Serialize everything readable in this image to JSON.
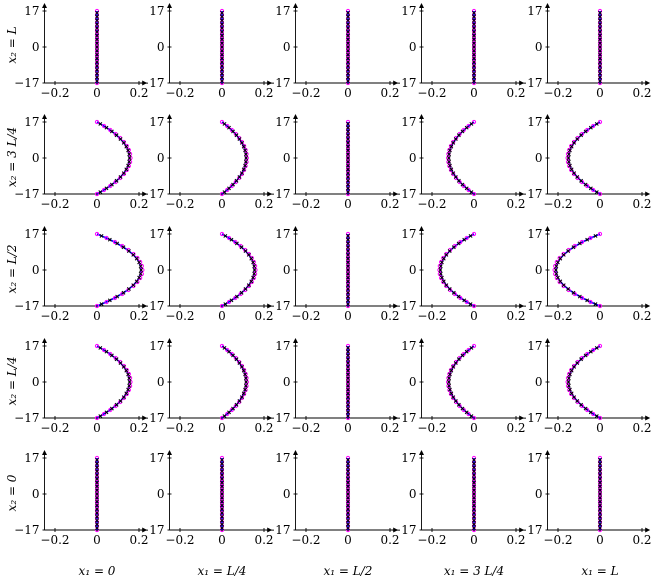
{
  "chart_data": {
    "type": "line",
    "layout": "grid 5 rows x 5 columns of small profile plots",
    "row_labels": [
      "x₂ = L",
      "x₂ = 3 L/4",
      "x₂ = L/2",
      "x₂ = L/4",
      "x₂ = 0"
    ],
    "col_labels": [
      "x₁ = 0",
      "x₁ = L/4",
      "x₁ = L/2",
      "x₁ = 3 L/4",
      "x₁ = L"
    ],
    "x_ticks": [
      "−0.2",
      "0",
      "0.2"
    ],
    "y_ticks": [
      "17",
      "0",
      "−17"
    ],
    "xlim": [
      -0.25,
      0.22
    ],
    "ylim": [
      -17,
      17
    ],
    "series_styles": [
      {
        "color": "#0000ff",
        "style": "solid line"
      },
      {
        "color": "#ff00ff",
        "style": "circle markers"
      },
      {
        "color": "#000000",
        "style": "cross markers"
      }
    ],
    "panels": [
      [
        {
          "amp": 0
        },
        {
          "amp": 0
        },
        {
          "amp": 0
        },
        {
          "amp": 0
        },
        {
          "amp": 0
        }
      ],
      [
        {
          "amp": 0.155
        },
        {
          "amp": 0.115
        },
        {
          "amp": 0
        },
        {
          "amp": -0.12
        },
        {
          "amp": -0.15
        }
      ],
      [
        {
          "amp": 0.21
        },
        {
          "amp": 0.155
        },
        {
          "amp": 0
        },
        {
          "amp": -0.16
        },
        {
          "amp": -0.21
        }
      ],
      [
        {
          "amp": 0.155
        },
        {
          "amp": 0.115
        },
        {
          "amp": 0
        },
        {
          "amp": -0.12
        },
        {
          "amp": -0.15
        }
      ],
      [
        {
          "amp": 0
        },
        {
          "amp": 0
        },
        {
          "amp": 0
        },
        {
          "amp": 0
        },
        {
          "amp": 0
        }
      ]
    ]
  }
}
